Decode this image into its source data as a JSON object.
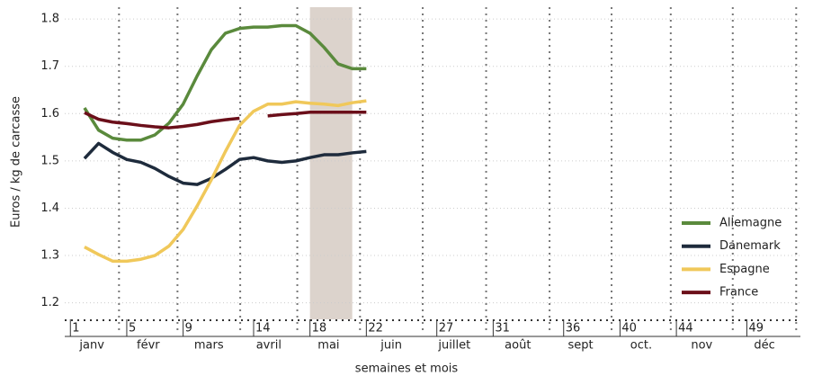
{
  "chart_data": {
    "type": "line",
    "y_label": "Euros / kg de carcasse",
    "x_label": "semaines et mois",
    "x": [
      2,
      3,
      4,
      5,
      6,
      7,
      8,
      9,
      10,
      11,
      12,
      13,
      14,
      15,
      16,
      17,
      18,
      19,
      20,
      21,
      22
    ],
    "series": [
      {
        "name": "Allemagne",
        "color": "#5a8a3c",
        "values": [
          1.612,
          1.565,
          1.548,
          1.544,
          1.544,
          1.555,
          1.58,
          1.62,
          1.68,
          1.735,
          1.77,
          1.78,
          1.783,
          1.783,
          1.786,
          1.786,
          1.77,
          1.74,
          1.705,
          1.695,
          1.695
        ]
      },
      {
        "name": "Danemark",
        "color": "#1e2b3c",
        "values": [
          1.505,
          1.537,
          1.518,
          1.503,
          1.497,
          1.484,
          1.467,
          1.453,
          1.45,
          1.463,
          1.482,
          1.503,
          1.507,
          1.5,
          1.497,
          1.5,
          1.507,
          1.513,
          1.513,
          1.517,
          1.52
        ]
      },
      {
        "name": "Espagne",
        "color": "#f0c85a",
        "values": [
          1.318,
          1.302,
          1.288,
          1.288,
          1.292,
          1.3,
          1.32,
          1.355,
          1.405,
          1.46,
          1.52,
          1.575,
          1.605,
          1.62,
          1.62,
          1.625,
          1.622,
          1.62,
          1.617,
          1.623,
          1.627
        ]
      },
      {
        "name": "France",
        "color": "#6b0f1a",
        "values": [
          1.602,
          1.588,
          1.582,
          1.579,
          1.575,
          1.572,
          1.57,
          1.573,
          1.577,
          1.583,
          1.587,
          1.59,
          null,
          1.595,
          1.598,
          1.6,
          1.603,
          1.603,
          1.603,
          1.603,
          1.603
        ]
      }
    ],
    "xlim": [
      0.6,
      52.8
    ],
    "xticks": [
      1,
      5,
      9,
      14,
      18,
      22,
      27,
      31,
      36,
      40,
      44,
      49
    ],
    "months": [
      "janv",
      "févr",
      "mars",
      "avril",
      "mai",
      "juin",
      "juillet",
      "août",
      "sept",
      "oct.",
      "nov",
      "déc"
    ],
    "month_edges": [
      0.6,
      4.45,
      8.6,
      13.05,
      17.1,
      21.55,
      26,
      30.5,
      35,
      39.4,
      43.6,
      48,
      52.5
    ],
    "highlight": [
      18,
      21
    ],
    "highlight_color": "#dcd3cc",
    "ylim": [
      1.165,
      1.825
    ],
    "yticks": [
      1.2,
      1.3,
      1.4,
      1.5,
      1.6,
      1.7,
      1.8
    ],
    "grid": true,
    "legend": "lower right"
  }
}
